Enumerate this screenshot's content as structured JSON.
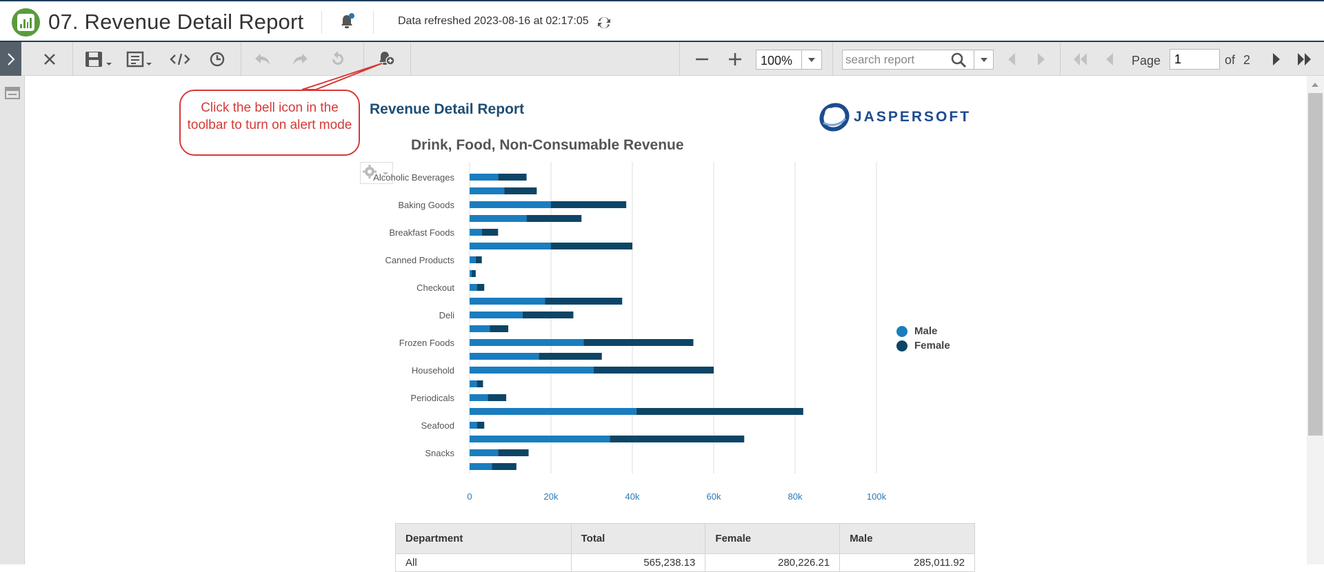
{
  "app": {
    "title": "07. Revenue Detail Report",
    "refreshed": "Data refreshed 2023-08-16 at 02:17:05"
  },
  "toolbar": {
    "zoom": "100%",
    "search_placeholder": "search report",
    "page_label": "Page",
    "page_value": "1",
    "of_label": "of",
    "total_pages": "2"
  },
  "callout": {
    "text": "Click the bell icon in the toolbar to turn on alert mode"
  },
  "report": {
    "title": "Revenue Detail Report",
    "logo_text": "JASPERSOFT"
  },
  "colors": {
    "male": "#1a7dbf",
    "female": "#0d4566",
    "callout": "#d43a37",
    "header_border": "#1b3f5c"
  },
  "chart_data": {
    "type": "bar",
    "orientation": "horizontal",
    "stacked": true,
    "title": "Drink, Food, Non-Consumable Revenue",
    "category_labels": [
      "Alcoholic Beverages",
      "",
      "Baking Goods",
      "",
      "Breakfast Foods",
      "",
      "Canned Products",
      "",
      "Checkout",
      "",
      "Deli",
      "",
      "Frozen Foods",
      "",
      "Household",
      "",
      "Periodicals",
      "",
      "Seafood",
      "",
      "Snacks",
      ""
    ],
    "series": [
      {
        "name": "Male",
        "values": [
          7000,
          8500,
          20000,
          14000,
          3000,
          20000,
          1500,
          500,
          1800,
          18500,
          13000,
          5000,
          28000,
          17000,
          30500,
          1800,
          4500,
          41000,
          1800,
          34500,
          7000,
          5500
        ]
      },
      {
        "name": "Female",
        "values": [
          7000,
          8000,
          18500,
          13500,
          4000,
          20000,
          1500,
          1000,
          1800,
          19000,
          12500,
          4500,
          27000,
          15500,
          29500,
          1500,
          4500,
          41000,
          1800,
          33000,
          7500,
          6000
        ]
      }
    ],
    "xticks": [
      "0",
      "20k",
      "40k",
      "60k",
      "80k",
      "100k"
    ],
    "xlim": [
      0,
      100000
    ],
    "legend": [
      "Male",
      "Female"
    ],
    "legend_position": "right",
    "grid": true
  },
  "table": {
    "headers": [
      "Department",
      "Total",
      "Female",
      "Male"
    ],
    "rows": [
      [
        "All",
        "565,238.13",
        "280,226.21",
        "285,011.92"
      ]
    ]
  }
}
